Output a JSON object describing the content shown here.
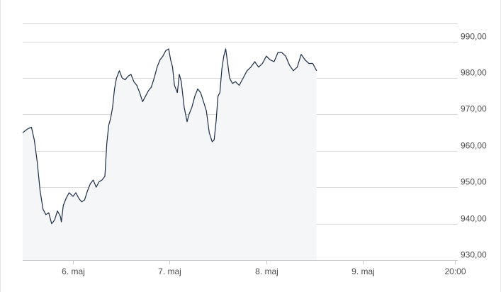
{
  "chart_data": {
    "type": "area",
    "title": "",
    "xlabel": "",
    "ylabel": "",
    "ylim": [
      930,
      995
    ],
    "grid": true,
    "y_ticks": [
      "930,00",
      "940,00",
      "950,00",
      "960,00",
      "970,00",
      "980,00",
      "990,00"
    ],
    "y_tick_values": [
      930,
      940,
      950,
      960,
      970,
      980,
      990
    ],
    "x_ticks": [
      "6. maj",
      "7. maj",
      "8. maj",
      "9. maj",
      "20:00"
    ],
    "x_tick_values": [
      1.0,
      2.0,
      3.0,
      4.0,
      4.95
    ],
    "xlim": [
      0.48,
      4.98
    ],
    "colors": {
      "line": "#1c2b45",
      "fill": "#f5f6f8",
      "grid": "#d9d9d9",
      "axis": "#cccccc"
    },
    "series": [
      {
        "name": "",
        "points": [
          [
            0.48,
            965.0
          ],
          [
            0.53,
            966.0
          ],
          [
            0.57,
            966.5
          ],
          [
            0.6,
            963.0
          ],
          [
            0.63,
            957.0
          ],
          [
            0.66,
            949.0
          ],
          [
            0.69,
            944.0
          ],
          [
            0.72,
            942.5
          ],
          [
            0.75,
            943.0
          ],
          [
            0.78,
            940.0
          ],
          [
            0.81,
            941.0
          ],
          [
            0.84,
            943.5
          ],
          [
            0.87,
            942.0
          ],
          [
            0.88,
            940.5
          ],
          [
            0.9,
            945.0
          ],
          [
            0.93,
            947.0
          ],
          [
            0.96,
            948.5
          ],
          [
            1.0,
            947.5
          ],
          [
            1.03,
            948.5
          ],
          [
            1.06,
            947.0
          ],
          [
            1.09,
            946.0
          ],
          [
            1.12,
            946.5
          ],
          [
            1.15,
            949.0
          ],
          [
            1.18,
            951.0
          ],
          [
            1.21,
            952.0
          ],
          [
            1.24,
            950.0
          ],
          [
            1.27,
            951.5
          ],
          [
            1.3,
            952.0
          ],
          [
            1.33,
            953.0
          ],
          [
            1.35,
            962.0
          ],
          [
            1.37,
            967.0
          ],
          [
            1.39,
            969.0
          ],
          [
            1.41,
            972.0
          ],
          [
            1.43,
            977.0
          ],
          [
            1.45,
            980.0
          ],
          [
            1.48,
            982.0
          ],
          [
            1.51,
            980.0
          ],
          [
            1.54,
            979.5
          ],
          [
            1.57,
            980.5
          ],
          [
            1.6,
            981.0
          ],
          [
            1.63,
            979.0
          ],
          [
            1.66,
            978.0
          ],
          [
            1.69,
            976.0
          ],
          [
            1.72,
            973.5
          ],
          [
            1.75,
            975.0
          ],
          [
            1.78,
            976.5
          ],
          [
            1.81,
            977.5
          ],
          [
            1.84,
            980.0
          ],
          [
            1.87,
            983.0
          ],
          [
            1.9,
            985.0
          ],
          [
            1.93,
            986.0
          ],
          [
            1.96,
            987.5
          ],
          [
            1.99,
            988.0
          ],
          [
            2.01,
            985.0
          ],
          [
            2.03,
            983.0
          ],
          [
            2.05,
            978.0
          ],
          [
            2.08,
            976.0
          ],
          [
            2.1,
            981.0
          ],
          [
            2.12,
            979.0
          ],
          [
            2.15,
            972.0
          ],
          [
            2.18,
            968.0
          ],
          [
            2.2,
            970.0
          ],
          [
            2.23,
            972.0
          ],
          [
            2.26,
            975.0
          ],
          [
            2.29,
            977.0
          ],
          [
            2.32,
            976.0
          ],
          [
            2.35,
            973.5
          ],
          [
            2.38,
            971.0
          ],
          [
            2.41,
            965.0
          ],
          [
            2.44,
            962.5
          ],
          [
            2.46,
            963.0
          ],
          [
            2.48,
            968.0
          ],
          [
            2.5,
            975.0
          ],
          [
            2.52,
            976.0
          ],
          [
            2.54,
            982.5
          ],
          [
            2.56,
            986.0
          ],
          [
            2.58,
            988.0
          ],
          [
            2.6,
            984.0
          ],
          [
            2.62,
            980.0
          ],
          [
            2.65,
            978.5
          ],
          [
            2.68,
            979.0
          ],
          [
            2.72,
            978.0
          ],
          [
            2.76,
            980.0
          ],
          [
            2.8,
            982.0
          ],
          [
            2.84,
            983.0
          ],
          [
            2.88,
            984.5
          ],
          [
            2.92,
            983.0
          ],
          [
            2.96,
            984.0
          ],
          [
            3.0,
            986.0
          ],
          [
            3.04,
            985.0
          ],
          [
            3.08,
            984.5
          ],
          [
            3.12,
            987.0
          ],
          [
            3.16,
            987.0
          ],
          [
            3.2,
            986.0
          ],
          [
            3.24,
            983.5
          ],
          [
            3.28,
            982.0
          ],
          [
            3.32,
            983.0
          ],
          [
            3.36,
            986.5
          ],
          [
            3.4,
            985.0
          ],
          [
            3.44,
            984.0
          ],
          [
            3.48,
            984.0
          ],
          [
            3.52,
            982.0
          ]
        ]
      }
    ]
  }
}
